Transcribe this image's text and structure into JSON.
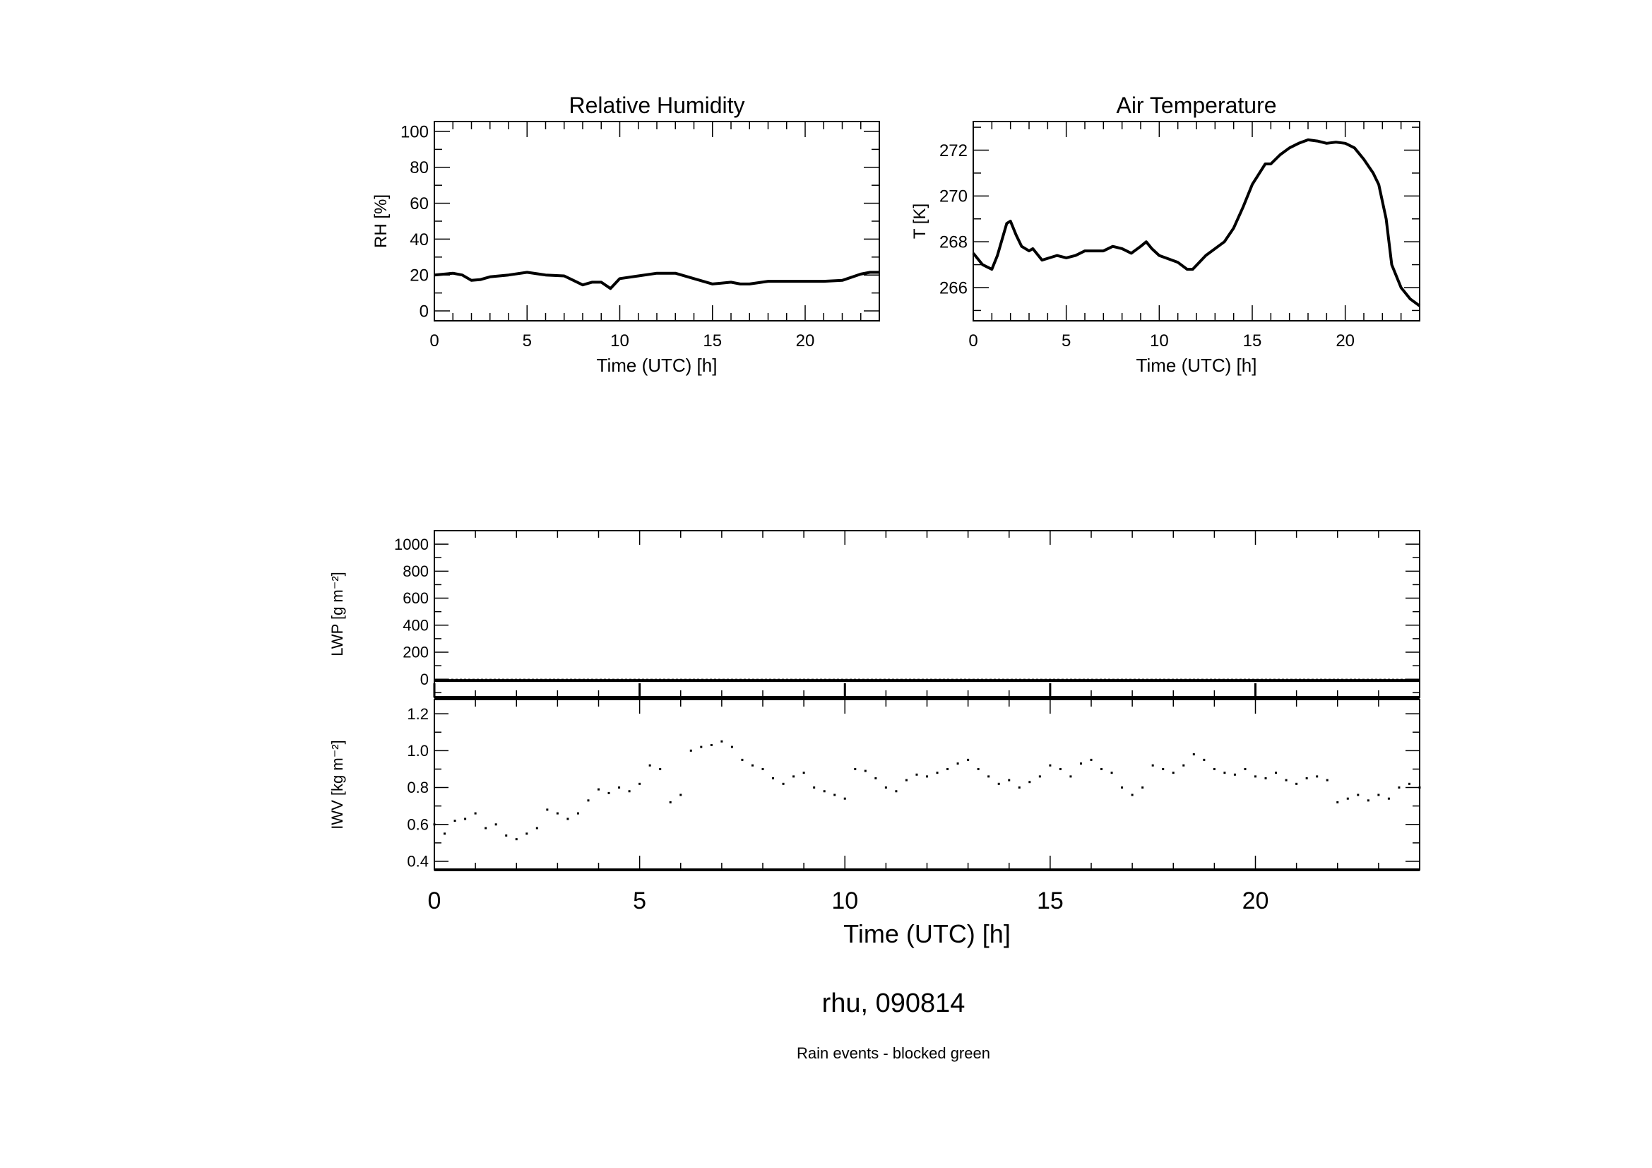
{
  "figure_title": "rhu, 090814",
  "note": "Rain events - blocked green",
  "note_color": "#00ff00",
  "chart_data": [
    {
      "id": "rh",
      "type": "line",
      "title": "Relative Humidity",
      "xlabel": "Time (UTC) [h]",
      "ylabel": "RH [%]",
      "xlim": [
        0,
        24
      ],
      "ylim": [
        -5.5,
        105.5
      ],
      "xticks": [
        0,
        5,
        10,
        15,
        20
      ],
      "yticks": [
        0,
        20,
        40,
        60,
        80,
        100
      ],
      "x": [
        0,
        1,
        1.5,
        2,
        2.5,
        3,
        4,
        5,
        6,
        7,
        7.5,
        8,
        8.5,
        9,
        9.5,
        10,
        11,
        12,
        13,
        14,
        15,
        16,
        16.5,
        17,
        18,
        19,
        20,
        21,
        22,
        23,
        23.5,
        24
      ],
      "y": [
        20,
        21,
        20,
        17,
        17.5,
        19,
        20,
        21.5,
        20,
        19.5,
        17,
        14.5,
        16,
        16,
        12.5,
        18,
        19.5,
        21,
        21,
        18,
        15,
        16,
        15,
        15,
        16.5,
        16.5,
        16.5,
        16.5,
        17,
        20.5,
        21.5,
        21.5
      ]
    },
    {
      "id": "t",
      "type": "line",
      "title": "Air Temperature",
      "xlabel": "Time (UTC) [h]",
      "ylabel": "T [K]",
      "xlim": [
        0,
        24
      ],
      "ylim": [
        264.55,
        273.25
      ],
      "xticks": [
        0,
        5,
        10,
        15,
        20
      ],
      "yticks": [
        266,
        268,
        270,
        272
      ],
      "x": [
        0,
        0.5,
        1,
        1.3,
        1.8,
        2,
        2.3,
        2.6,
        3,
        3.2,
        3.7,
        4.5,
        5,
        5.5,
        6,
        7,
        7.5,
        8,
        8.5,
        9,
        9.3,
        9.6,
        10,
        11,
        11.5,
        11.8,
        12.5,
        13.5,
        14,
        14.5,
        15,
        15.7,
        16,
        16.5,
        17,
        17.5,
        18,
        18.5,
        19,
        19.5,
        20,
        20.5,
        21,
        21.5,
        21.8,
        22.2,
        22.5,
        23,
        23.5,
        24
      ],
      "y": [
        267.5,
        267.0,
        266.8,
        267.4,
        268.8,
        268.9,
        268.3,
        267.8,
        267.6,
        267.7,
        267.2,
        267.4,
        267.3,
        267.4,
        267.6,
        267.6,
        267.8,
        267.7,
        267.5,
        267.8,
        268.0,
        267.7,
        267.4,
        267.1,
        266.8,
        266.8,
        267.4,
        268.0,
        268.6,
        269.5,
        270.5,
        271.4,
        271.4,
        271.8,
        272.1,
        272.3,
        272.45,
        272.4,
        272.3,
        272.35,
        272.3,
        272.1,
        271.6,
        271.0,
        270.5,
        269.0,
        267.0,
        266.0,
        265.5,
        265.2
      ]
    },
    {
      "id": "lwp",
      "type": "line",
      "ylabel": "LWP [g m⁻²]",
      "xlim": [
        0,
        24
      ],
      "ylim": [
        -135,
        1100
      ],
      "yticks": [
        0,
        200,
        400,
        600,
        800,
        1000
      ],
      "reference_line": 0,
      "x": [
        0,
        24
      ],
      "y": [
        -10,
        -10
      ]
    },
    {
      "id": "iwv",
      "type": "scatter",
      "xlabel": "Time (UTC) [h]",
      "ylabel": "IWV [kg m⁻²]",
      "xlim": [
        0,
        24
      ],
      "ylim": [
        0.354,
        1.277
      ],
      "xticks": [
        0,
        5,
        10,
        15,
        20
      ],
      "yticks": [
        0.4,
        0.6,
        0.8,
        1.0,
        1.2
      ],
      "x": [
        0,
        0.25,
        0.5,
        0.75,
        1,
        1.25,
        1.5,
        1.75,
        2,
        2.25,
        2.5,
        2.75,
        3,
        3.25,
        3.5,
        3.75,
        4,
        4.25,
        4.5,
        4.75,
        5,
        5.25,
        5.5,
        5.75,
        6,
        6.25,
        6.5,
        6.75,
        7,
        7.25,
        7.5,
        7.75,
        8,
        8.25,
        8.5,
        8.75,
        9,
        9.25,
        9.5,
        9.75,
        10,
        10.25,
        10.5,
        10.75,
        11,
        11.25,
        11.5,
        11.75,
        12,
        12.25,
        12.5,
        12.75,
        13,
        13.25,
        13.5,
        13.75,
        14,
        14.25,
        14.5,
        14.75,
        15,
        15.25,
        15.5,
        15.75,
        16,
        16.25,
        16.5,
        16.75,
        17,
        17.25,
        17.5,
        17.75,
        18,
        18.25,
        18.5,
        18.75,
        19,
        19.25,
        19.5,
        19.75,
        20,
        20.25,
        20.5,
        20.75,
        21,
        21.25,
        21.5,
        21.75,
        22,
        22.25,
        22.5,
        22.75,
        23,
        23.25,
        23.5,
        23.75,
        24
      ],
      "y": [
        0.6,
        0.55,
        0.62,
        0.63,
        0.66,
        0.58,
        0.6,
        0.54,
        0.52,
        0.55,
        0.58,
        0.68,
        0.66,
        0.63,
        0.66,
        0.73,
        0.79,
        0.77,
        0.8,
        0.78,
        0.82,
        0.92,
        0.9,
        0.72,
        0.76,
        1.0,
        1.02,
        1.03,
        1.05,
        1.02,
        0.95,
        0.92,
        0.9,
        0.85,
        0.82,
        0.86,
        0.88,
        0.8,
        0.78,
        0.76,
        0.74,
        0.9,
        0.89,
        0.85,
        0.8,
        0.78,
        0.84,
        0.87,
        0.86,
        0.88,
        0.9,
        0.93,
        0.95,
        0.9,
        0.86,
        0.82,
        0.84,
        0.8,
        0.83,
        0.86,
        0.92,
        0.9,
        0.86,
        0.93,
        0.95,
        0.9,
        0.88,
        0.8,
        0.76,
        0.8,
        0.92,
        0.9,
        0.88,
        0.92,
        0.98,
        0.95,
        0.9,
        0.88,
        0.87,
        0.9,
        0.86,
        0.85,
        0.88,
        0.84,
        0.82,
        0.85,
        0.86,
        0.84,
        0.72,
        0.74,
        0.76,
        0.73,
        0.76,
        0.74,
        0.8,
        0.82,
        0.8
      ]
    }
  ]
}
